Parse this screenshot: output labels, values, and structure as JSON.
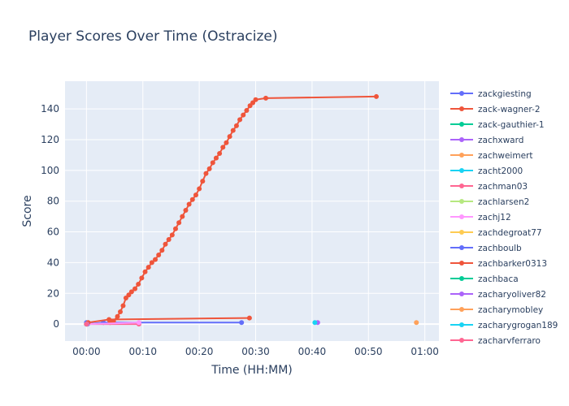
{
  "chart_data": {
    "type": "line",
    "title": "Player Scores Over Time (Ostracize)",
    "xlabel": "Time (HH:MM)",
    "ylabel": "Score",
    "x_unit": "minutes",
    "xlim": [
      -3.8,
      62.5
    ],
    "ylim": [
      -11,
      158
    ],
    "x_ticks": [
      0,
      10,
      20,
      30,
      40,
      50,
      60
    ],
    "x_tick_labels": [
      "00:00",
      "00:10",
      "00:20",
      "00:30",
      "00:40",
      "00:50",
      "01:00"
    ],
    "y_ticks": [
      0,
      20,
      40,
      60,
      80,
      100,
      120,
      140
    ],
    "y_tick_labels": [
      "0",
      "20",
      "40",
      "60",
      "80",
      "100",
      "120",
      "140"
    ],
    "grid": true,
    "legend_position": "right",
    "series": [
      {
        "name": "zackgiesting",
        "color": "#636efa",
        "x": [
          0.2,
          3.0,
          27.5
        ],
        "y": [
          0,
          1,
          1
        ]
      },
      {
        "name": "zack-wagner-2",
        "color": "#ef553b",
        "x": [
          4.2,
          4.8,
          5.5,
          6.0,
          6.5,
          7.0,
          7.5,
          8.0,
          8.6,
          9.2,
          9.8,
          10.4,
          11.0,
          11.6,
          12.2,
          12.8,
          13.4,
          14.0,
          14.6,
          15.2,
          15.8,
          16.4,
          17.0,
          17.6,
          18.2,
          18.8,
          19.4,
          20.0,
          20.6,
          21.2,
          21.8,
          22.4,
          23.0,
          23.6,
          24.2,
          24.8,
          25.4,
          26.0,
          26.6,
          27.2,
          27.8,
          28.4,
          29.0,
          29.5,
          30.0,
          31.8,
          51.4
        ],
        "y": [
          1,
          2,
          5,
          8,
          12,
          17,
          19,
          21,
          23,
          26,
          30,
          34,
          37,
          40,
          42,
          45,
          48,
          52,
          55,
          58,
          62,
          66,
          70,
          74,
          78,
          81,
          84,
          88,
          93,
          98,
          101,
          105,
          108,
          111,
          115,
          118,
          122,
          126,
          129,
          133,
          136,
          139,
          142,
          144,
          146,
          147,
          148
        ]
      },
      {
        "name": "zack-gauthier-1",
        "color": "#00cc96",
        "x": [
          0.1
        ],
        "y": [
          0
        ]
      },
      {
        "name": "zachxward",
        "color": "#ab63fa",
        "x": [
          41.0
        ],
        "y": [
          1
        ]
      },
      {
        "name": "zachweimert",
        "color": "#ffa15a",
        "x": [
          58.5
        ],
        "y": [
          1
        ]
      },
      {
        "name": "zacht2000",
        "color": "#19d3f3",
        "x": [
          40.5
        ],
        "y": [
          1
        ]
      },
      {
        "name": "zachman03",
        "color": "#ff6692",
        "x": [
          0.0,
          9.3
        ],
        "y": [
          0,
          0
        ]
      },
      {
        "name": "zachlarsen2",
        "color": "#b6e880",
        "x": [
          0.0
        ],
        "y": [
          0
        ]
      },
      {
        "name": "zachj12",
        "color": "#ff97ff",
        "x": [
          0.1,
          9.3
        ],
        "y": [
          0,
          1
        ]
      },
      {
        "name": "zachdegroat77",
        "color": "#fecb52",
        "x": [
          0.1
        ],
        "y": [
          0
        ]
      },
      {
        "name": "zachboulb",
        "color": "#636efa",
        "x": [
          0.0
        ],
        "y": [
          1
        ]
      },
      {
        "name": "zachbarker0313",
        "color": "#ef553b",
        "x": [
          0.3,
          4.0,
          28.9
        ],
        "y": [
          1,
          3,
          4
        ]
      },
      {
        "name": "zachbaca",
        "color": "#00cc96",
        "x": [
          0.0
        ],
        "y": [
          0
        ]
      },
      {
        "name": "zacharyoliver82",
        "color": "#ab63fa",
        "x": [
          0.1
        ],
        "y": [
          0
        ]
      },
      {
        "name": "zacharymobley",
        "color": "#ffa15a",
        "x": [
          0.0
        ],
        "y": [
          0
        ]
      },
      {
        "name": "zacharygrogan189",
        "color": "#19d3f3",
        "x": [
          0.0
        ],
        "y": [
          0
        ]
      },
      {
        "name": "zacharyferraro",
        "color": "#ff6692",
        "x": [
          0.0
        ],
        "y": [
          0
        ]
      }
    ]
  }
}
